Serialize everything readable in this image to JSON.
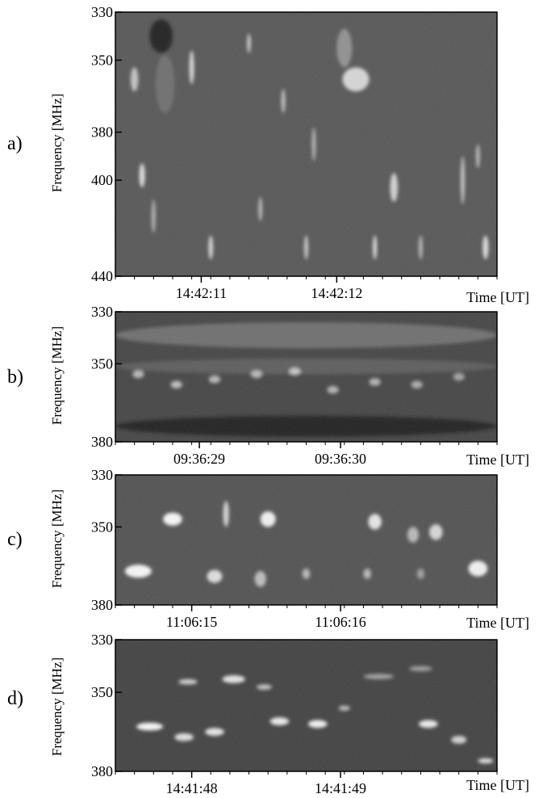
{
  "chart_data": [
    {
      "type": "heatmap",
      "panel_label": "a)",
      "ylabel": "Frequency [MHz]",
      "xlabel": "Time [UT]",
      "y_ticks": [
        "330",
        "350",
        "380",
        "400",
        "440"
      ],
      "y_tick_values": [
        330,
        350,
        380,
        400,
        440
      ],
      "ylim": [
        330,
        440
      ],
      "x_ticks": [
        "14:42:11",
        "14:42:12"
      ],
      "x_tick_fractions": [
        0.225,
        0.58
      ],
      "background_level": 0.32,
      "features": [
        {
          "t": 0.12,
          "f": 340,
          "w": 0.06,
          "h": 14,
          "v": 0.1
        },
        {
          "t": 0.13,
          "f": 360,
          "w": 0.05,
          "h": 24,
          "v": 0.42
        },
        {
          "t": 0.6,
          "f": 345,
          "w": 0.04,
          "h": 16,
          "v": 0.55
        },
        {
          "t": 0.63,
          "f": 358,
          "w": 0.07,
          "h": 10,
          "v": 0.82
        },
        {
          "t": 0.05,
          "f": 358,
          "w": 0.02,
          "h": 10,
          "v": 0.75
        },
        {
          "t": 0.2,
          "f": 353,
          "w": 0.012,
          "h": 14,
          "v": 0.85
        },
        {
          "t": 0.35,
          "f": 343,
          "w": 0.01,
          "h": 8,
          "v": 0.78
        },
        {
          "t": 0.07,
          "f": 398,
          "w": 0.015,
          "h": 10,
          "v": 0.85
        },
        {
          "t": 0.44,
          "f": 367,
          "w": 0.01,
          "h": 10,
          "v": 0.76
        },
        {
          "t": 0.52,
          "f": 385,
          "w": 0.01,
          "h": 14,
          "v": 0.7
        },
        {
          "t": 0.73,
          "f": 403,
          "w": 0.02,
          "h": 12,
          "v": 0.8
        },
        {
          "t": 0.91,
          "f": 400,
          "w": 0.01,
          "h": 20,
          "v": 0.78
        },
        {
          "t": 0.95,
          "f": 390,
          "w": 0.01,
          "h": 10,
          "v": 0.72
        },
        {
          "t": 0.25,
          "f": 428,
          "w": 0.012,
          "h": 10,
          "v": 0.82
        },
        {
          "t": 0.5,
          "f": 428,
          "w": 0.01,
          "h": 10,
          "v": 0.8
        },
        {
          "t": 0.68,
          "f": 428,
          "w": 0.01,
          "h": 10,
          "v": 0.88
        },
        {
          "t": 0.8,
          "f": 428,
          "w": 0.01,
          "h": 10,
          "v": 0.72
        },
        {
          "t": 0.97,
          "f": 428,
          "w": 0.015,
          "h": 10,
          "v": 0.85
        },
        {
          "t": 0.38,
          "f": 412,
          "w": 0.01,
          "h": 10,
          "v": 0.72
        },
        {
          "t": 0.1,
          "f": 415,
          "w": 0.01,
          "h": 14,
          "v": 0.7
        }
      ]
    },
    {
      "type": "heatmap",
      "panel_label": "b)",
      "ylabel": "Frequency [MHz]",
      "xlabel": "Time [UT]",
      "y_ticks": [
        "330",
        "350",
        "380"
      ],
      "y_tick_values": [
        330,
        350,
        380
      ],
      "ylim": [
        330,
        380
      ],
      "x_ticks": [
        "09:36:29",
        "09:36:30"
      ],
      "x_tick_fractions": [
        0.22,
        0.59
      ],
      "background_level": 0.25,
      "features": [
        {
          "t": 0.5,
          "f": 339,
          "w": 1.0,
          "h": 10,
          "v": 0.42
        },
        {
          "t": 0.5,
          "f": 351,
          "w": 1.0,
          "h": 6,
          "v": 0.35
        },
        {
          "t": 0.5,
          "f": 374,
          "w": 1.0,
          "h": 8,
          "v": 0.12
        },
        {
          "t": 0.06,
          "f": 354,
          "w": 0.03,
          "h": 3,
          "v": 0.7
        },
        {
          "t": 0.16,
          "f": 358,
          "w": 0.03,
          "h": 3,
          "v": 0.72
        },
        {
          "t": 0.26,
          "f": 356,
          "w": 0.03,
          "h": 3,
          "v": 0.7
        },
        {
          "t": 0.37,
          "f": 354,
          "w": 0.03,
          "h": 3,
          "v": 0.7
        },
        {
          "t": 0.47,
          "f": 353,
          "w": 0.03,
          "h": 3,
          "v": 0.75
        },
        {
          "t": 0.57,
          "f": 360,
          "w": 0.03,
          "h": 3,
          "v": 0.68
        },
        {
          "t": 0.68,
          "f": 357,
          "w": 0.03,
          "h": 3,
          "v": 0.68
        },
        {
          "t": 0.79,
          "f": 358,
          "w": 0.03,
          "h": 3,
          "v": 0.65
        },
        {
          "t": 0.9,
          "f": 355,
          "w": 0.03,
          "h": 3,
          "v": 0.62
        }
      ]
    },
    {
      "type": "heatmap",
      "panel_label": "c)",
      "ylabel": "Frequency [MHz]",
      "xlabel": "Time [UT]",
      "y_ticks": [
        "330",
        "350",
        "380"
      ],
      "y_tick_values": [
        330,
        350,
        380
      ],
      "ylim": [
        330,
        380
      ],
      "x_ticks": [
        "11:06:15",
        "11:06:16"
      ],
      "x_tick_fractions": [
        0.2,
        0.59
      ],
      "background_level": 0.3,
      "features": [
        {
          "t": 0.15,
          "f": 347,
          "w": 0.05,
          "h": 5,
          "v": 0.95
        },
        {
          "t": 0.29,
          "f": 345,
          "w": 0.015,
          "h": 10,
          "v": 0.82
        },
        {
          "t": 0.4,
          "f": 347,
          "w": 0.04,
          "h": 6,
          "v": 0.92
        },
        {
          "t": 0.68,
          "f": 348,
          "w": 0.035,
          "h": 6,
          "v": 0.88
        },
        {
          "t": 0.78,
          "f": 353,
          "w": 0.03,
          "h": 6,
          "v": 0.7
        },
        {
          "t": 0.84,
          "f": 352,
          "w": 0.035,
          "h": 6,
          "v": 0.82
        },
        {
          "t": 0.06,
          "f": 367,
          "w": 0.07,
          "h": 5,
          "v": 0.95
        },
        {
          "t": 0.26,
          "f": 369,
          "w": 0.04,
          "h": 5,
          "v": 0.85
        },
        {
          "t": 0.38,
          "f": 370,
          "w": 0.03,
          "h": 6,
          "v": 0.72
        },
        {
          "t": 0.5,
          "f": 368,
          "w": 0.02,
          "h": 4,
          "v": 0.7
        },
        {
          "t": 0.66,
          "f": 368,
          "w": 0.02,
          "h": 4,
          "v": 0.7
        },
        {
          "t": 0.8,
          "f": 368,
          "w": 0.02,
          "h": 4,
          "v": 0.6
        },
        {
          "t": 0.95,
          "f": 366,
          "w": 0.05,
          "h": 6,
          "v": 0.92
        }
      ]
    },
    {
      "type": "heatmap",
      "panel_label": "d)",
      "ylabel": "Frequency [MHz]",
      "xlabel": "Time [UT]",
      "y_ticks": [
        "330",
        "350",
        "380"
      ],
      "y_tick_values": [
        330,
        350,
        380
      ],
      "ylim": [
        330,
        380
      ],
      "x_ticks": [
        "14:41:48",
        "14:41:49"
      ],
      "x_tick_fractions": [
        0.2,
        0.59
      ],
      "background_level": 0.24,
      "features": [
        {
          "t": 0.19,
          "f": 346,
          "w": 0.05,
          "h": 2,
          "v": 0.8
        },
        {
          "t": 0.31,
          "f": 345,
          "w": 0.06,
          "h": 3,
          "v": 0.88
        },
        {
          "t": 0.39,
          "f": 348,
          "w": 0.04,
          "h": 2,
          "v": 0.75
        },
        {
          "t": 0.09,
          "f": 363,
          "w": 0.07,
          "h": 3,
          "v": 0.95
        },
        {
          "t": 0.18,
          "f": 367,
          "w": 0.05,
          "h": 3,
          "v": 0.85
        },
        {
          "t": 0.26,
          "f": 365,
          "w": 0.05,
          "h": 3,
          "v": 0.88
        },
        {
          "t": 0.43,
          "f": 361,
          "w": 0.05,
          "h": 3,
          "v": 0.9
        },
        {
          "t": 0.53,
          "f": 362,
          "w": 0.05,
          "h": 3,
          "v": 0.92
        },
        {
          "t": 0.6,
          "f": 356,
          "w": 0.03,
          "h": 2,
          "v": 0.7
        },
        {
          "t": 0.69,
          "f": 344,
          "w": 0.08,
          "h": 2,
          "v": 0.62
        },
        {
          "t": 0.8,
          "f": 341,
          "w": 0.06,
          "h": 2,
          "v": 0.6
        },
        {
          "t": 0.82,
          "f": 362,
          "w": 0.05,
          "h": 3,
          "v": 0.9
        },
        {
          "t": 0.9,
          "f": 368,
          "w": 0.04,
          "h": 3,
          "v": 0.8
        },
        {
          "t": 0.97,
          "f": 376,
          "w": 0.04,
          "h": 2,
          "v": 0.85
        }
      ]
    }
  ]
}
